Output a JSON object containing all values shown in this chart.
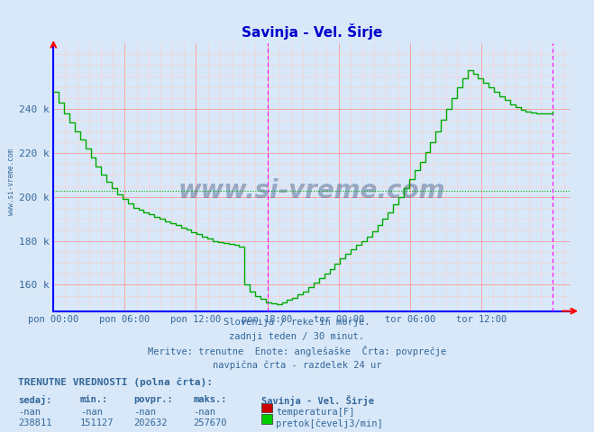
{
  "title": "Savinja - Vel. Širje",
  "title_color": "#0000cc",
  "bg_color": "#d8e8f8",
  "plot_bg_color": "#d8e8f8",
  "grid_color_major": "#ff9999",
  "grid_color_minor": "#ffcccc",
  "axis_color": "#0000ff",
  "avg_line_color": "#00aa00",
  "avg_line_value": 202632,
  "vline_color": "#ff00ff",
  "text_color": "#336699",
  "watermark_color": "#1a3a6a",
  "ylabel_ticks": [
    160000,
    180000,
    200000,
    220000,
    240000
  ],
  "ylabel_labels": [
    "160 k",
    "180 k",
    "200 k",
    "220 k",
    "240 k"
  ],
  "ylim": [
    148000,
    270000
  ],
  "xlabel_ticks": [
    0,
    12,
    24,
    36,
    48,
    60,
    72,
    84
  ],
  "xlabel_labels": [
    "pon 00:00",
    "pon 06:00",
    "pon 12:00",
    "pon 18:00",
    "tor 00:00",
    "tor 06:00",
    "tor 12:00",
    ""
  ],
  "vlines_x": [
    36,
    84
  ],
  "subtitle_lines": [
    "Slovenija / reke in morje.",
    "zadnji teden / 30 minut.",
    "Meritve: trenutne  Enote: anglešaške  Črta: povprečje",
    "navpična črta - razdelek 24 ur"
  ],
  "bottom_title": "TRENUTNE VREDNOSTI (polna črta):",
  "col_headers": [
    "sedaj:",
    "min.:",
    "povpr.:",
    "maks.:"
  ],
  "row1_vals": [
    "-nan",
    "-nan",
    "-nan",
    "-nan"
  ],
  "row2_vals": [
    "238811",
    "151127",
    "202632",
    "257670"
  ],
  "legend_station": "Savinja - Vel. Širje",
  "legend_items": [
    {
      "label": "temperatura[F]",
      "color": "#cc0000"
    },
    {
      "label": "pretok[čevelj3/min]",
      "color": "#00cc00"
    }
  ],
  "flow_data": [
    248000,
    243000,
    238000,
    234000,
    230000,
    226000,
    222000,
    218000,
    214000,
    210000,
    207000,
    204000,
    201000,
    199000,
    197000,
    195000,
    194000,
    193000,
    192000,
    191000,
    190000,
    189000,
    188000,
    187000,
    186000,
    185000,
    184000,
    183000,
    182000,
    181000,
    180000,
    179500,
    179000,
    178500,
    178000,
    177500,
    160000,
    157000,
    155000,
    153500,
    152000,
    151500,
    151127,
    152000,
    153000,
    154000,
    155500,
    157000,
    159000,
    161000,
    163000,
    165000,
    167000,
    169500,
    172000,
    174000,
    176000,
    178000,
    180000,
    182000,
    184500,
    187000,
    190000,
    193000,
    196500,
    200000,
    204000,
    208000,
    212000,
    216000,
    220500,
    225000,
    230000,
    235000,
    240000,
    245000,
    250000,
    254000,
    257670,
    256000,
    254000,
    252000,
    250000,
    248000,
    246000,
    244000,
    242000,
    240800,
    239500,
    238900,
    238500,
    238200,
    238000,
    238100,
    238811
  ]
}
